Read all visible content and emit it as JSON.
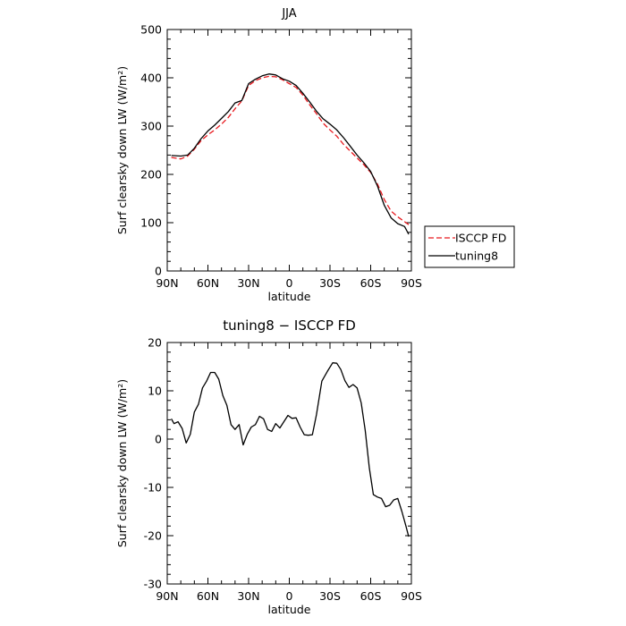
{
  "chart_data": [
    {
      "type": "line",
      "title": "JJA",
      "xlabel": "latitude",
      "ylabel": "Surf clearsky down LW (W/m²)",
      "xlim": [
        90,
        -90
      ],
      "ylim": [
        0,
        500
      ],
      "xticks": [
        {
          "value": 90,
          "label": "90N"
        },
        {
          "value": 60,
          "label": "60N"
        },
        {
          "value": 30,
          "label": "30N"
        },
        {
          "value": 0,
          "label": "0"
        },
        {
          "value": -30,
          "label": "30S"
        },
        {
          "value": -60,
          "label": "60S"
        },
        {
          "value": -90,
          "label": "90S"
        }
      ],
      "yticks": [
        0,
        100,
        200,
        300,
        400,
        500
      ],
      "legend": "right",
      "series": [
        {
          "name": "ISCCP FD",
          "color": "#e8191e",
          "dash": true,
          "x": [
            87,
            80,
            75,
            70,
            65,
            60,
            55,
            50,
            45,
            40,
            35,
            30,
            25,
            20,
            15,
            10,
            5,
            0,
            -5,
            -10,
            -15,
            -20,
            -25,
            -30,
            -35,
            -40,
            -45,
            -50,
            -55,
            -60,
            -65,
            -70,
            -75,
            -80,
            -85,
            -88
          ],
          "y": [
            235,
            232,
            238,
            252,
            270,
            282,
            292,
            304,
            318,
            336,
            352,
            384,
            394,
            400,
            403,
            402,
            396,
            388,
            380,
            364,
            344,
            326,
            306,
            292,
            279,
            262,
            248,
            234,
            220,
            204,
            180,
            148,
            124,
            112,
            102,
            96
          ]
        },
        {
          "name": "tuning8",
          "color": "#000000",
          "dash": false,
          "x": [
            87,
            80,
            75,
            70,
            65,
            60,
            55,
            50,
            45,
            40,
            35,
            30,
            25,
            20,
            15,
            10,
            5,
            0,
            -5,
            -10,
            -15,
            -20,
            -25,
            -30,
            -35,
            -40,
            -45,
            -50,
            -55,
            -60,
            -65,
            -70,
            -75,
            -80,
            -85,
            -88
          ],
          "y": [
            239,
            238,
            240,
            254,
            274,
            290,
            302,
            316,
            330,
            348,
            353,
            388,
            397,
            404,
            408,
            406,
            398,
            393,
            384,
            368,
            350,
            331,
            315,
            304,
            292,
            276,
            258,
            240,
            224,
            206,
            176,
            136,
            110,
            98,
            92,
            76
          ]
        }
      ]
    },
    {
      "type": "line",
      "title": "tuning8 − ISCCP FD",
      "xlabel": "latitude",
      "ylabel": "Surf clearsky down LW (W/m²)",
      "xlim": [
        90,
        -90
      ],
      "ylim": [
        -30,
        20
      ],
      "xticks": [
        {
          "value": 90,
          "label": "90N"
        },
        {
          "value": 60,
          "label": "60N"
        },
        {
          "value": 30,
          "label": "30N"
        },
        {
          "value": 0,
          "label": "0"
        },
        {
          "value": -30,
          "label": "30S"
        },
        {
          "value": -60,
          "label": "60S"
        },
        {
          "value": -90,
          "label": "90S"
        }
      ],
      "yticks": [
        -30,
        -20,
        -10,
        0,
        10,
        20
      ],
      "series": [
        {
          "color": "#000000",
          "dash": false,
          "x": [
            87,
            85,
            82,
            79,
            76,
            73,
            70,
            67,
            64,
            61,
            58,
            55,
            52,
            49,
            46,
            43,
            40,
            37,
            34,
            31,
            28,
            25,
            22,
            19,
            16,
            13,
            10,
            7,
            4,
            1,
            -2,
            -5,
            -8,
            -11,
            -14,
            -17,
            -20,
            -24,
            -28,
            -32,
            -35,
            -38,
            -41,
            -44,
            -47,
            -50,
            -53,
            -56,
            -59,
            -62,
            -65,
            -68,
            -71,
            -74,
            -77,
            -80,
            -83,
            -86,
            -88
          ],
          "y": [
            4.2,
            3.2,
            3.6,
            2.2,
            -0.8,
            1.0,
            5.6,
            7.2,
            10.6,
            12.0,
            13.8,
            13.8,
            12.4,
            9.0,
            7.0,
            3.0,
            2.0,
            3.0,
            -1.2,
            1.0,
            2.5,
            3.0,
            4.7,
            4.2,
            2.0,
            1.6,
            3.2,
            2.3,
            3.6,
            4.9,
            4.3,
            4.4,
            2.5,
            0.9,
            0.8,
            0.9,
            5.0,
            12.0,
            14.0,
            15.8,
            15.7,
            14.4,
            12.1,
            10.7,
            11.3,
            10.6,
            7.5,
            1.8,
            -6.0,
            -11.5,
            -12.0,
            -12.3,
            -14.0,
            -13.7,
            -12.6,
            -12.3,
            -15.0,
            -18.0,
            -20.2
          ]
        }
      ]
    }
  ]
}
